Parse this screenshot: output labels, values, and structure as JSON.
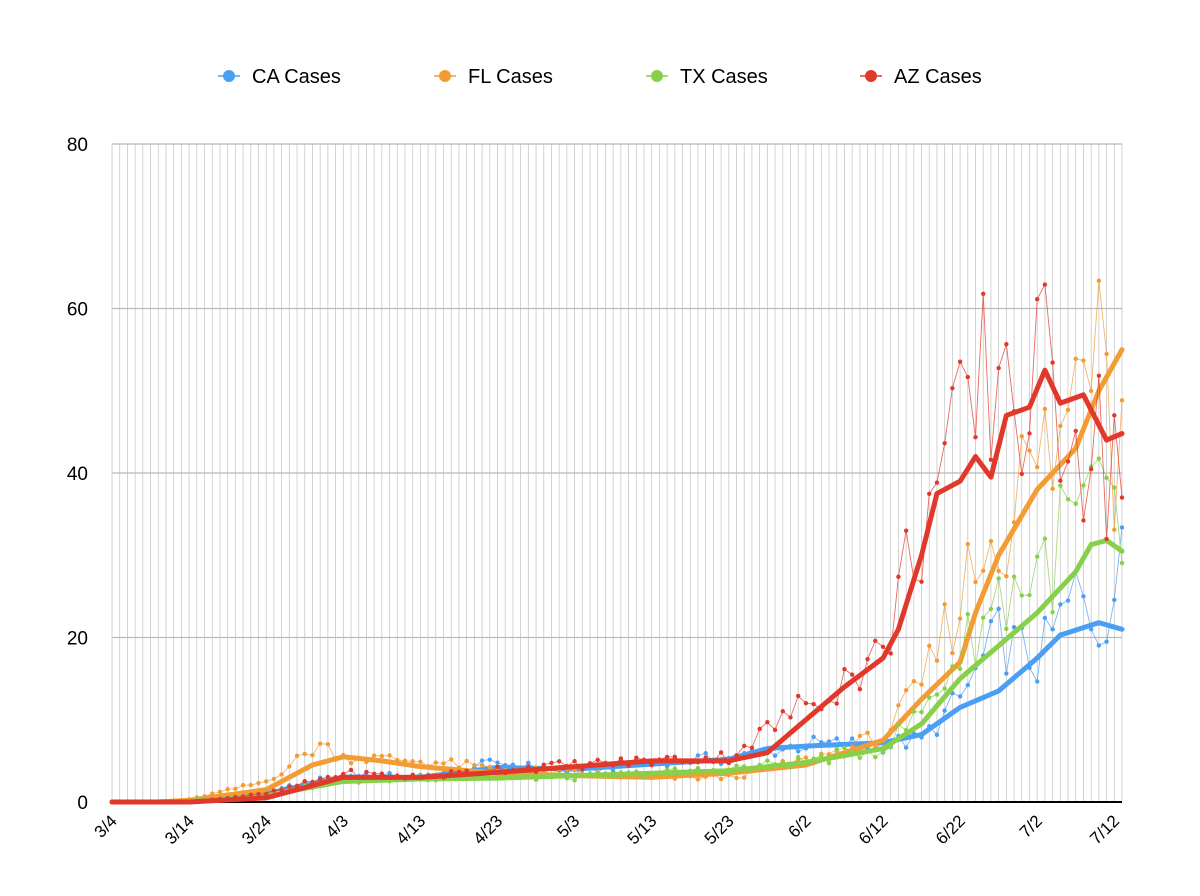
{
  "chart_data": {
    "type": "line",
    "title": "",
    "xlabel": "",
    "ylabel": "",
    "ylim": [
      0,
      80
    ],
    "y_ticks": [
      "0",
      "20",
      "40",
      "60",
      "80"
    ],
    "x_tick_labels": [
      "3/4",
      "3/14",
      "3/24",
      "4/3",
      "4/13",
      "4/23",
      "5/3",
      "5/13",
      "5/23",
      "6/2",
      "6/12",
      "6/22",
      "7/2",
      "7/12"
    ],
    "x_start": "3/4",
    "grid": true,
    "legend_position": "top",
    "series": [
      {
        "name": "CA Cases",
        "color": "#4a9ff5",
        "daily_anchors": [
          [
            "3/4",
            0
          ],
          [
            "3/10",
            0
          ],
          [
            "3/14",
            0.2
          ],
          [
            "3/24",
            1.2
          ],
          [
            "4/3",
            3.3
          ],
          [
            "4/13",
            3.0
          ],
          [
            "4/23",
            4.8
          ],
          [
            "5/3",
            3.5
          ],
          [
            "5/13",
            5.0
          ],
          [
            "5/23",
            5.3
          ],
          [
            "6/2",
            7.0
          ],
          [
            "6/12",
            7.0
          ],
          [
            "6/17",
            7.5
          ],
          [
            "6/22",
            12.5
          ],
          [
            "6/27",
            20
          ],
          [
            "7/2",
            17
          ],
          [
            "7/7",
            25
          ],
          [
            "7/10",
            22
          ],
          [
            "7/13",
            28
          ]
        ],
        "average_anchors": [
          [
            "3/4",
            0
          ],
          [
            "3/10",
            0
          ],
          [
            "3/14",
            0.1
          ],
          [
            "3/24",
            1.0
          ],
          [
            "4/3",
            3.0
          ],
          [
            "4/13",
            3.0
          ],
          [
            "4/23",
            4.2
          ],
          [
            "5/3",
            4.0
          ],
          [
            "5/13",
            4.6
          ],
          [
            "5/23",
            5.2
          ],
          [
            "5/28",
            6.5
          ],
          [
            "6/2",
            6.8
          ],
          [
            "6/12",
            7.2
          ],
          [
            "6/17",
            8.2
          ],
          [
            "6/22",
            11.5
          ],
          [
            "6/27",
            13.5
          ],
          [
            "7/2",
            17.5
          ],
          [
            "7/5",
            20.3
          ],
          [
            "7/10",
            21.8
          ],
          [
            "7/13",
            21.0
          ]
        ]
      },
      {
        "name": "FL Cases",
        "color": "#f39c34",
        "daily_anchors": [
          [
            "3/4",
            0
          ],
          [
            "3/10",
            0
          ],
          [
            "3/14",
            0.3
          ],
          [
            "3/24",
            2.5
          ],
          [
            "3/31",
            7.0
          ],
          [
            "4/3",
            5.5
          ],
          [
            "4/13",
            5.0
          ],
          [
            "4/23",
            4.0
          ],
          [
            "5/3",
            3.5
          ],
          [
            "5/13",
            3.0
          ],
          [
            "5/23",
            3.0
          ],
          [
            "6/2",
            5.0
          ],
          [
            "6/12",
            8.0
          ],
          [
            "6/17",
            14
          ],
          [
            "6/22",
            25
          ],
          [
            "6/27",
            35
          ],
          [
            "7/2",
            40
          ],
          [
            "7/6",
            45
          ],
          [
            "7/10",
            71
          ],
          [
            "7/12",
            45
          ],
          [
            "7/13",
            65
          ]
        ],
        "average_anchors": [
          [
            "3/4",
            0
          ],
          [
            "3/10",
            0
          ],
          [
            "3/14",
            0.2
          ],
          [
            "3/24",
            1.5
          ],
          [
            "3/30",
            4.5
          ],
          [
            "4/3",
            5.5
          ],
          [
            "4/8",
            5.0
          ],
          [
            "4/13",
            4.3
          ],
          [
            "4/23",
            3.5
          ],
          [
            "5/3",
            3.2
          ],
          [
            "5/13",
            3.0
          ],
          [
            "5/23",
            3.5
          ],
          [
            "6/2",
            4.5
          ],
          [
            "6/12",
            7.5
          ],
          [
            "6/17",
            12.5
          ],
          [
            "6/22",
            17
          ],
          [
            "6/24",
            23
          ],
          [
            "6/27",
            30
          ],
          [
            "7/2",
            38
          ],
          [
            "7/7",
            43
          ],
          [
            "7/10",
            50
          ],
          [
            "7/13",
            55
          ]
        ]
      },
      {
        "name": "TX Cases",
        "color": "#88d04a",
        "daily_anchors": [
          [
            "3/4",
            0
          ],
          [
            "3/10",
            0
          ],
          [
            "3/14",
            0.1
          ],
          [
            "3/24",
            1.0
          ],
          [
            "4/3",
            2.5
          ],
          [
            "4/13",
            3.0
          ],
          [
            "4/23",
            3.0
          ],
          [
            "5/3",
            3.0
          ],
          [
            "5/13",
            3.5
          ],
          [
            "5/23",
            4.0
          ],
          [
            "6/2",
            5.0
          ],
          [
            "6/12",
            6.5
          ],
          [
            "6/17",
            11
          ],
          [
            "6/22",
            18
          ],
          [
            "6/27",
            25
          ],
          [
            "7/2",
            28
          ],
          [
            "7/7",
            34
          ],
          [
            "7/11",
            37
          ],
          [
            "7/13",
            25
          ]
        ],
        "average_anchors": [
          [
            "3/4",
            0
          ],
          [
            "3/10",
            0
          ],
          [
            "3/14",
            0.05
          ],
          [
            "3/24",
            0.8
          ],
          [
            "4/3",
            2.5
          ],
          [
            "4/13",
            2.8
          ],
          [
            "4/23",
            2.9
          ],
          [
            "5/3",
            3.2
          ],
          [
            "5/13",
            3.5
          ],
          [
            "5/23",
            3.8
          ],
          [
            "6/2",
            4.8
          ],
          [
            "6/12",
            6.5
          ],
          [
            "6/17",
            9.5
          ],
          [
            "6/22",
            15
          ],
          [
            "6/27",
            19
          ],
          [
            "7/2",
            23
          ],
          [
            "7/7",
            28
          ],
          [
            "7/9",
            31.3
          ],
          [
            "7/11",
            31.8
          ],
          [
            "7/13",
            30.5
          ]
        ]
      },
      {
        "name": "AZ Cases",
        "color": "#e0392b",
        "daily_anchors": [
          [
            "3/4",
            0
          ],
          [
            "3/10",
            0
          ],
          [
            "3/14",
            0
          ],
          [
            "3/24",
            1.0
          ],
          [
            "4/3",
            3.5
          ],
          [
            "4/13",
            3.0
          ],
          [
            "4/23",
            4.0
          ],
          [
            "5/3",
            4.5
          ],
          [
            "5/13",
            5.0
          ],
          [
            "5/23",
            5.5
          ],
          [
            "6/2",
            12
          ],
          [
            "6/12",
            18
          ],
          [
            "6/17",
            35
          ],
          [
            "6/22",
            42
          ],
          [
            "6/27",
            55
          ],
          [
            "7/1",
            48
          ],
          [
            "7/6",
            52
          ],
          [
            "7/10",
            42
          ],
          [
            "7/13",
            45
          ]
        ],
        "average_anchors": [
          [
            "3/4",
            0
          ],
          [
            "3/10",
            0
          ],
          [
            "3/14",
            0
          ],
          [
            "3/24",
            0.5
          ],
          [
            "4/3",
            3.0
          ],
          [
            "4/13",
            3.0
          ],
          [
            "4/23",
            3.6
          ],
          [
            "5/3",
            4.3
          ],
          [
            "5/13",
            5.0
          ],
          [
            "5/23",
            5.0
          ],
          [
            "5/28",
            6.0
          ],
          [
            "6/2",
            10
          ],
          [
            "6/7",
            14
          ],
          [
            "6/12",
            17.5
          ],
          [
            "6/14",
            21
          ],
          [
            "6/17",
            30
          ],
          [
            "6/19",
            37.5
          ],
          [
            "6/22",
            39
          ],
          [
            "6/24",
            42
          ],
          [
            "6/26",
            39.5
          ],
          [
            "6/28",
            47
          ],
          [
            "7/1",
            48
          ],
          [
            "7/3",
            52.5
          ],
          [
            "7/5",
            48.5
          ],
          [
            "7/8",
            49.5
          ],
          [
            "7/11",
            44
          ],
          [
            "7/13",
            44.8
          ]
        ]
      }
    ]
  }
}
